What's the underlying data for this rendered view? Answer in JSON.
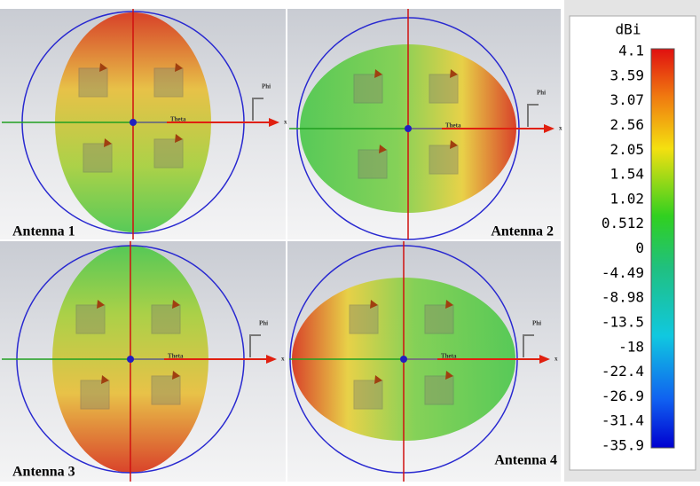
{
  "panels": [
    {
      "label": "Antenna 1"
    },
    {
      "label": "Antenna 2"
    },
    {
      "label": "Antenna 3"
    },
    {
      "label": "Antenna 4"
    }
  ],
  "axes": {
    "theta": "Theta",
    "phi": "Phi",
    "x": "x"
  },
  "colorbar": {
    "unit": "dBi",
    "ticks": [
      4.1,
      3.59,
      3.07,
      2.56,
      2.05,
      1.54,
      1.02,
      0.512,
      0,
      -4.49,
      -8.98,
      -13.5,
      -18,
      -22.4,
      -26.9,
      -31.4,
      -35.9
    ]
  }
}
